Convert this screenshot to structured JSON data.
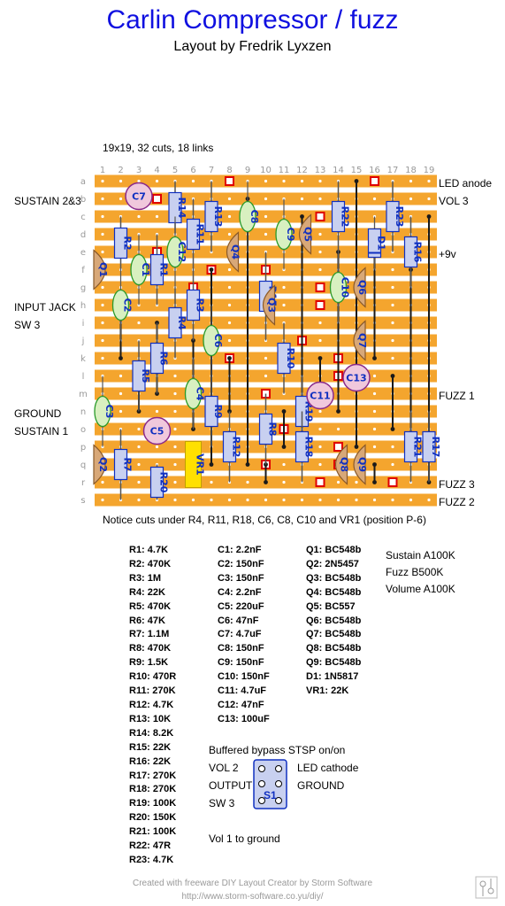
{
  "title": "Carlin Compressor / fuzz",
  "subtitle": "Layout by Fredrik Lyxzen",
  "board_info": "19x19, 32 cuts, 18 links",
  "columns": [
    "1",
    "2",
    "3",
    "4",
    "5",
    "6",
    "7",
    "8",
    "9",
    "10",
    "11",
    "12",
    "13",
    "14",
    "15",
    "16",
    "17",
    "18",
    "19"
  ],
  "rows": [
    "a",
    "b",
    "c",
    "d",
    "e",
    "f",
    "g",
    "h",
    "i",
    "j",
    "k",
    "l",
    "m",
    "n",
    "o",
    "p",
    "q",
    "r",
    "s"
  ],
  "left_labels": {
    "sustain23": "SUSTAIN 2&3",
    "input_jack": "INPUT JACK",
    "sw3": "SW 3",
    "ground": "GROUND",
    "sustain1": "SUSTAIN 1"
  },
  "right_labels": {
    "led_anode": "LED anode",
    "vol3": "VOL 3",
    "plus9v": "+9v",
    "fuzz1": "FUZZ 1",
    "fuzz3": "FUZZ 3",
    "fuzz2": "FUZZ 2"
  },
  "notice": "Notice cuts under R4, R11, R18, C6, C8, C10 and VR1 (position P-6)",
  "resistors": [
    "R1: 4.7K",
    "R2: 470K",
    "R3: 1M",
    "R4: 22K",
    "R5: 470K",
    "R6: 47K",
    "R7: 1.1M",
    "R8: 470K",
    "R9: 1.5K",
    "R10: 470R",
    "R11: 270K",
    "R12: 4.7K",
    "R13: 10K",
    "R14: 8.2K",
    "R15: 22K",
    "R16: 22K",
    "R17: 270K",
    "R18: 270K",
    "R19: 100K",
    "R20: 150K",
    "R21: 100K",
    "R22: 47R",
    "R23: 4.7K"
  ],
  "capacitors": [
    "C1: 2.2nF",
    "C2: 150nF",
    "C3: 150nF",
    "C4: 2.2nF",
    "C5: 220uF",
    "C6: 47nF",
    "C7: 4.7uF",
    "C8: 150nF",
    "C9: 150nF",
    "C10: 150nF",
    "C11: 4.7uF",
    "C12: 47nF",
    "C13: 100uF"
  ],
  "semis": [
    "Q1: BC548b",
    "Q2: 2N5457",
    "Q3: BC548b",
    "Q4: BC548b",
    "Q5: BC557",
    "Q6: BC548b",
    "Q7: BC548b",
    "Q8: BC548b",
    "Q9: BC548b",
    "D1: 1N5817",
    "VR1: 22K"
  ],
  "pots": [
    "Sustain A100K",
    "Fuzz B500K",
    "Volume A100K"
  ],
  "switch": {
    "title": "Buffered bypass STSP on/on",
    "vol2": "VOL 2",
    "output": "OUTPUT",
    "sw3": "SW 3",
    "led_cathode": "LED cathode",
    "ground": "GROUND",
    "label": "S1",
    "vol1": "Vol 1 to ground"
  },
  "footer": {
    "line1": "Created with freeware DIY Layout Creator by Storm Software",
    "line2": "http://www.storm-software.co.yu/diy/"
  },
  "colors": {
    "strip": "#f4a52e",
    "title": "#1010e0",
    "resistor": "#c8d0f0",
    "cap_film": "#d8f0c0",
    "cap_elec": "#f0c8dc",
    "transistor": "#d8a878",
    "link": "#1a1a1a",
    "cut": "#e00000",
    "pot": "#ffe000"
  }
}
